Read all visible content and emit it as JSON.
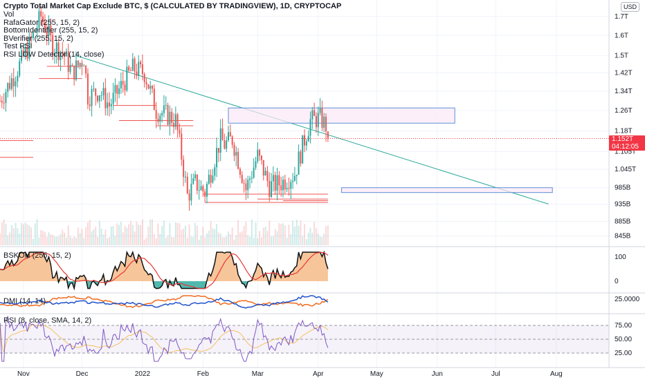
{
  "header": {
    "title": "Crypto Total Market Cap Exclude BTC, $ (CALCULATED BY TRADINGVIEW), 1D, CRYPTOCAP",
    "currency": "USD",
    "indicators": [
      "Vol",
      "RafaGator (255, 15, 2)",
      "BottomIdentifier (255, 15, 2)",
      "BVerifier (255, 15, 2)",
      "Test RSI",
      "RSI LOW Detector (14, close)"
    ]
  },
  "price_axis": {
    "labels": [
      "1.7T",
      "1.6T",
      "1.5T",
      "1.42T",
      "1.34T",
      "1.26T",
      "1.18T",
      "1.105T",
      "1.045T",
      "985B",
      "935B",
      "885B",
      "845B"
    ],
    "current_price": "1.152T",
    "countdown": "04:12:05"
  },
  "time_axis": {
    "labels": [
      "Nov",
      "Dec",
      "2022",
      "Feb",
      "Mar",
      "Apr",
      "May",
      "Jun",
      "Jul",
      "Aug"
    ]
  },
  "panes": {
    "bskon": {
      "label": "BSKON (255, 15, 2)",
      "axis": [
        "100",
        "0"
      ]
    },
    "dmi": {
      "label": "DMI (14, 14)",
      "axis": [
        "25.0000"
      ]
    },
    "rsi": {
      "label": "RSI (8, close, SMA, 14, 2)",
      "axis": [
        "75.00",
        "50.00",
        "25.00"
      ]
    }
  },
  "colors": {
    "up": "#26a69a",
    "down": "#ef5350",
    "trend": "#26a69a",
    "box_fill": "#fce8f6",
    "box_stroke": "#5b8fd6",
    "tag": "#f23645",
    "rsi_line": "#7e57c2",
    "rsi_ma": "#f5c15f",
    "dmi_plus": "#1e50c8",
    "dmi_minus": "#f06a1e",
    "bskon_fill": "#f7c59a",
    "bskon_line": "#111111",
    "bskon_ma": "#e53935"
  },
  "chart_data": {
    "type": "candlestick",
    "title": "Crypto Total Market Cap Exclude BTC, $ (CALCULATED BY TRADINGVIEW), 1D, CRYPTOCAP",
    "unit": "USD (trillions)",
    "y_scale": "log",
    "ylim": [
      0.82,
      1.76
    ],
    "x_range": [
      "2021-10-20",
      "2022-08-28"
    ],
    "ohlc_waypoints": [
      {
        "date": "2021-10-20",
        "close": 1.3
      },
      {
        "date": "2021-10-28",
        "close": 1.42
      },
      {
        "date": "2021-11-04",
        "close": 1.55
      },
      {
        "date": "2021-11-10",
        "close": 1.7
      },
      {
        "date": "2021-11-16",
        "close": 1.55
      },
      {
        "date": "2021-11-21",
        "close": 1.52
      },
      {
        "date": "2021-11-26",
        "close": 1.42
      },
      {
        "date": "2021-12-02",
        "close": 1.49
      },
      {
        "date": "2021-12-04",
        "close": 1.32
      },
      {
        "date": "2021-12-10",
        "close": 1.34
      },
      {
        "date": "2021-12-15",
        "close": 1.28
      },
      {
        "date": "2021-12-21",
        "close": 1.36
      },
      {
        "date": "2021-12-27",
        "close": 1.44
      },
      {
        "date": "2022-01-02",
        "close": 1.42
      },
      {
        "date": "2022-01-08",
        "close": 1.26
      },
      {
        "date": "2022-01-14",
        "close": 1.24
      },
      {
        "date": "2022-01-18",
        "close": 1.22
      },
      {
        "date": "2022-01-24",
        "close": 0.96
      },
      {
        "date": "2022-01-28",
        "close": 1.0
      },
      {
        "date": "2022-02-02",
        "close": 0.97
      },
      {
        "date": "2022-02-10",
        "close": 1.15
      },
      {
        "date": "2022-02-12",
        "close": 1.13
      },
      {
        "date": "2022-02-16",
        "close": 1.15
      },
      {
        "date": "2022-02-23",
        "close": 0.98
      },
      {
        "date": "2022-03-01",
        "close": 1.09
      },
      {
        "date": "2022-03-07",
        "close": 0.99
      },
      {
        "date": "2022-03-13",
        "close": 1.0
      },
      {
        "date": "2022-03-20",
        "close": 1.03
      },
      {
        "date": "2022-03-28",
        "close": 1.22
      },
      {
        "date": "2022-04-02",
        "close": 1.23
      },
      {
        "date": "2022-04-05",
        "close": 1.2
      },
      {
        "date": "2022-04-06",
        "close": 1.152
      }
    ],
    "volume_range": "low",
    "drawings": {
      "trendline": [
        {
          "date": "2021-11-28",
          "price": 1.5
        },
        {
          "date": "2022-07-28",
          "price": 0.935
        }
      ],
      "rectangles": [
        {
          "from": "2022-02-14",
          "to": "2022-06-10",
          "price_top": 1.27,
          "price_bottom": 1.21
        },
        {
          "from": "2022-04-13",
          "to": "2022-07-30",
          "price_top": 0.985,
          "price_bottom": 0.97
        }
      ],
      "horizontal_levels": [
        {
          "from": "2021-10-20",
          "to": "2021-11-06",
          "price": 1.145
        },
        {
          "from": "2021-10-20",
          "to": "2021-11-06",
          "price": 1.085
        },
        {
          "from": "2021-11-13",
          "to": "2021-12-01",
          "price": 1.45
        },
        {
          "from": "2021-11-09",
          "to": "2021-12-01",
          "price": 1.395
        },
        {
          "from": "2021-12-17",
          "to": "2022-01-08",
          "price": 1.28
        },
        {
          "from": "2021-12-20",
          "to": "2022-01-27",
          "price": 1.22
        },
        {
          "from": "2022-01-08",
          "to": "2022-01-27",
          "price": 1.2
        },
        {
          "from": "2022-02-01",
          "to": "2022-04-06",
          "price": 0.965
        },
        {
          "from": "2022-02-02",
          "to": "2022-04-06",
          "price": 0.94
        },
        {
          "from": "2022-03-01",
          "to": "2022-04-06",
          "price": 0.95
        },
        {
          "from": "2022-03-18",
          "to": "2022-04-06",
          "price": 0.94
        },
        {
          "from": "2022-03-14",
          "to": "2022-04-06",
          "price": 0.945
        }
      ]
    }
  }
}
